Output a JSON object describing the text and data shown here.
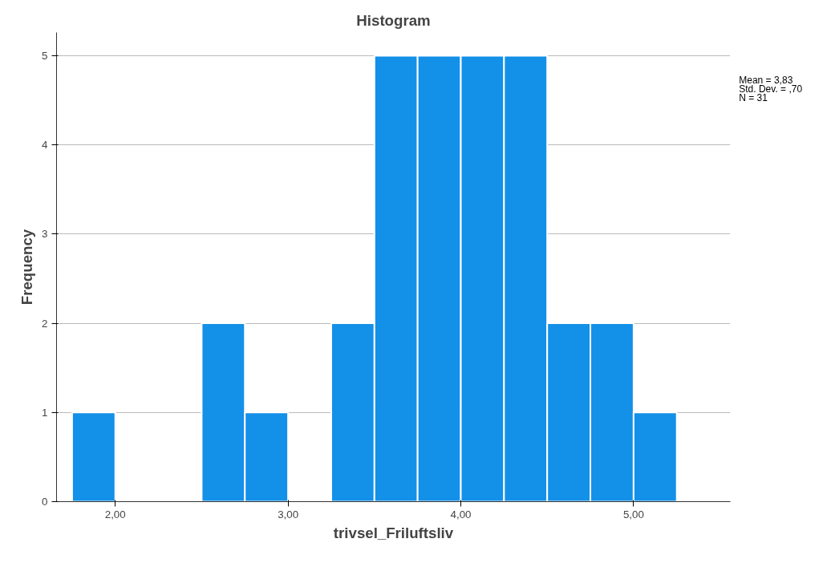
{
  "chart_data": {
    "type": "histogram",
    "title": "Histogram",
    "xlabel": "trivsel_Friluftsliv",
    "ylabel": "Frequency",
    "bins": [
      1.75,
      2.0,
      2.25,
      2.5,
      2.75,
      3.0,
      3.25,
      3.5,
      3.75,
      4.0,
      4.25,
      4.5,
      4.75,
      5.0,
      5.25
    ],
    "values": [
      1,
      0,
      0,
      2,
      1,
      0,
      2,
      5,
      5,
      5,
      5,
      2,
      2,
      1
    ],
    "color": "#1390e8",
    "xlim": [
      1.66,
      5.56
    ],
    "ylim": [
      0,
      5.26
    ],
    "xticks": [
      {
        "value": 2,
        "label": "2,00"
      },
      {
        "value": 3,
        "label": "3,00"
      },
      {
        "value": 4,
        "label": "4,00"
      },
      {
        "value": 5,
        "label": "5,00"
      }
    ],
    "yticks": [
      0,
      1,
      2,
      3,
      4,
      5
    ],
    "grid": "y",
    "annotations": [
      "Mean = 3,83",
      "Std. Dev. = ,70",
      "N = 31"
    ]
  }
}
